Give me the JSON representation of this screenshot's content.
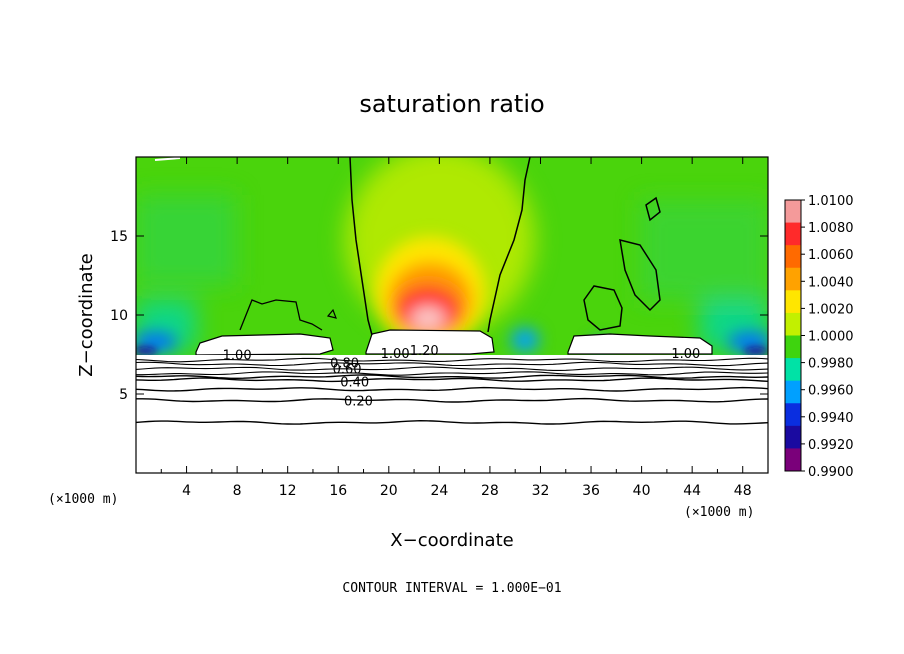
{
  "chart_data": {
    "type": "heatmap",
    "title": "saturation ratio",
    "xlabel": "X−coordinate",
    "ylabel": "Z−coordinate",
    "x_units": "(×1000 m)",
    "y_units": "(×1000 m)",
    "xlim": [
      0,
      50
    ],
    "ylim": [
      0,
      20
    ],
    "xticks": [
      4,
      8,
      12,
      16,
      20,
      24,
      28,
      32,
      36,
      40,
      44,
      48
    ],
    "yticks": [
      5,
      10,
      15
    ],
    "footer": "CONTOUR INTERVAL = 1.000E−01",
    "colorbar": {
      "labels": [
        "1.0100",
        "1.0080",
        "1.0060",
        "1.0040",
        "1.0020",
        "1.0000",
        "0.9980",
        "0.9960",
        "0.9940",
        "0.9920",
        "0.9900"
      ],
      "colors": [
        "#f49a9a",
        "#ff2a2a",
        "#ff6a00",
        "#ffa200",
        "#ffe600",
        "#c2f000",
        "#3ed40e",
        "#00e2a6",
        "#00a0ff",
        "#0a2ee0",
        "#1a0aa0",
        "#7a007a"
      ]
    },
    "contour_labels": [
      {
        "text": "1.00",
        "x": 8.0,
        "z": 7.5
      },
      {
        "text": "1.00",
        "x": 20.5,
        "z": 7.6
      },
      {
        "text": "1.00",
        "x": 43.5,
        "z": 7.6
      },
      {
        "text": "1.20",
        "x": 22.8,
        "z": 7.8
      },
      {
        "text": "0.80",
        "x": 16.5,
        "z": 7.0
      },
      {
        "text": "0.60",
        "x": 16.7,
        "z": 6.6
      },
      {
        "text": "0.40",
        "x": 17.3,
        "z": 5.8
      },
      {
        "text": "0.20",
        "x": 17.6,
        "z": 4.6
      }
    ],
    "contour_levels_z": [
      3.2,
      4.6,
      5.3,
      5.9,
      6.1,
      6.3,
      6.6,
      6.9,
      7.15
    ]
  }
}
